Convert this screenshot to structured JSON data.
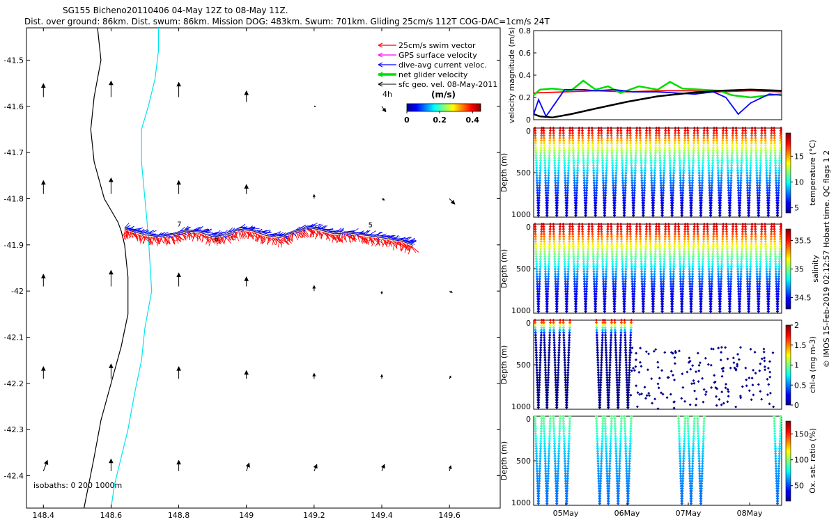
{
  "title_line1": "SG155 Bicheno20110406 04-May 12Z to 08-May 11Z.",
  "title_line2": "Dist. over ground: 86km. Dist. swum: 86km. Mission DOG: 483km. Swum: 701km. Gliding 25cm/s 112T COG-DAC=1cm/s 24T",
  "copyright": "© IMOS 15-Feb-2019 02:12:57 Hobart time. QC flags 1  2",
  "colors": {
    "swim": "#ff0000",
    "gps": "#ff00ff",
    "dac": "#0000ff",
    "net": "#00dd00",
    "sfc": "#000000",
    "coast": "#000000",
    "isobath_200": "#00e5ee"
  },
  "chart_data": [
    {
      "type": "scatter",
      "panel": "map",
      "xlim": [
        148.35,
        149.75
      ],
      "ylim": [
        -42.47,
        -41.43
      ],
      "x_ticks": [
        "148.4",
        "148.6",
        "148.8",
        "149",
        "149.2",
        "149.4",
        "149.6"
      ],
      "y_ticks": [
        "-41.5",
        "-41.6",
        "-41.7",
        "-41.8",
        "-41.9",
        "-42",
        "-42.1",
        "-42.2",
        "-42.3",
        "-42.4"
      ],
      "legend": {
        "placement": "top-right",
        "entries": [
          {
            "label": "25cm/s swim vector",
            "color": "#ff0000"
          },
          {
            "label": "GPS surface velocity",
            "color": "#ff00ff"
          },
          {
            "label": "dive-avg current veloc.",
            "color": "#0000ff"
          },
          {
            "label": "net glider velocity",
            "color": "#00dd00"
          },
          {
            "label": "sfc geo. vel. 08-May-2011",
            "color": "#000000"
          }
        ]
      },
      "colorbar": {
        "unit": "(m/s)",
        "duration": "4h",
        "ticks": [
          "0",
          "0.2",
          "0.4"
        ],
        "range": [
          0,
          0.45
        ]
      },
      "isobath_label": "isobaths: 0   200  1000m",
      "track": {
        "lon": [
          148.64,
          148.66,
          148.7,
          148.74,
          148.78,
          148.82,
          148.86,
          148.9,
          148.94,
          148.98,
          149.02,
          149.06,
          149.1,
          149.14,
          149.18,
          149.22,
          149.26,
          149.3,
          149.34,
          149.38,
          149.42,
          149.46,
          149.49
        ],
        "lat": [
          -41.865,
          -41.87,
          -41.878,
          -41.882,
          -41.878,
          -41.87,
          -41.872,
          -41.882,
          -41.878,
          -41.866,
          -41.87,
          -41.88,
          -41.884,
          -41.872,
          -41.862,
          -41.868,
          -41.876,
          -41.874,
          -41.878,
          -41.882,
          -41.887,
          -41.892,
          -41.9
        ]
      },
      "track_labels": [
        {
          "text": "7",
          "lon": 148.795,
          "lat": -41.86
        },
        {
          "text": "6",
          "lon": 148.905,
          "lat": -41.892
        },
        {
          "text": "5",
          "lon": 149.36,
          "lat": -41.862
        }
      ],
      "coastline": {
        "lon": [
          148.56,
          148.57,
          148.55,
          148.54,
          148.55,
          148.58,
          148.62,
          148.63,
          148.64,
          148.65,
          148.65,
          148.63,
          148.6,
          148.57,
          148.55,
          148.52
        ],
        "lat": [
          -41.43,
          -41.5,
          -41.58,
          -41.65,
          -41.72,
          -41.8,
          -41.85,
          -41.87,
          -41.9,
          -41.97,
          -42.05,
          -42.12,
          -42.2,
          -42.28,
          -42.36,
          -42.47
        ]
      },
      "isobath_200": {
        "lon": [
          148.74,
          148.74,
          148.73,
          148.71,
          148.69,
          148.69,
          148.7,
          148.71,
          148.72,
          148.7,
          148.69,
          148.67,
          148.65,
          148.63,
          148.61,
          148.6
        ],
        "lat": [
          -41.43,
          -41.48,
          -41.54,
          -41.6,
          -41.65,
          -41.72,
          -41.8,
          -41.88,
          -42.0,
          -42.08,
          -42.15,
          -42.22,
          -42.3,
          -42.36,
          -42.42,
          -42.47
        ]
      },
      "sfc_vectors": [
        {
          "lon": 148.4,
          "lat": -41.58,
          "u": 0.0,
          "v": 0.1
        },
        {
          "lon": 148.6,
          "lat": -41.58,
          "u": 0.0,
          "v": 0.12
        },
        {
          "lon": 148.8,
          "lat": -41.58,
          "u": 0.0,
          "v": 0.11
        },
        {
          "lon": 149.0,
          "lat": -41.59,
          "u": 0.0,
          "v": 0.08
        },
        {
          "lon": 149.2,
          "lat": -41.6,
          "u": 0.01,
          "v": 0.0
        },
        {
          "lon": 149.4,
          "lat": -41.6,
          "u": 0.03,
          "v": -0.04
        },
        {
          "lon": 148.4,
          "lat": -41.79,
          "u": 0.0,
          "v": 0.1
        },
        {
          "lon": 148.6,
          "lat": -41.79,
          "u": 0.0,
          "v": 0.12
        },
        {
          "lon": 148.8,
          "lat": -41.79,
          "u": 0.0,
          "v": 0.1
        },
        {
          "lon": 149.0,
          "lat": -41.79,
          "u": 0.0,
          "v": 0.07
        },
        {
          "lon": 149.2,
          "lat": -41.8,
          "u": 0.0,
          "v": 0.03
        },
        {
          "lon": 149.4,
          "lat": -41.8,
          "u": 0.02,
          "v": -0.01
        },
        {
          "lon": 149.6,
          "lat": -41.8,
          "u": 0.04,
          "v": -0.04
        },
        {
          "lon": 148.4,
          "lat": -41.99,
          "u": 0.0,
          "v": 0.09
        },
        {
          "lon": 148.6,
          "lat": -41.99,
          "u": 0.0,
          "v": 0.12
        },
        {
          "lon": 148.8,
          "lat": -41.99,
          "u": 0.0,
          "v": 0.1
        },
        {
          "lon": 149.0,
          "lat": -41.99,
          "u": 0.0,
          "v": 0.07
        },
        {
          "lon": 149.2,
          "lat": -42.0,
          "u": 0.0,
          "v": 0.04
        },
        {
          "lon": 149.4,
          "lat": -42.0,
          "u": 0.0,
          "v": -0.02
        },
        {
          "lon": 149.6,
          "lat": -42.0,
          "u": 0.02,
          "v": -0.01
        },
        {
          "lon": 148.4,
          "lat": -42.19,
          "u": 0.0,
          "v": 0.09
        },
        {
          "lon": 148.6,
          "lat": -42.19,
          "u": 0.0,
          "v": 0.11
        },
        {
          "lon": 148.8,
          "lat": -42.19,
          "u": 0.0,
          "v": 0.09
        },
        {
          "lon": 149.0,
          "lat": -42.19,
          "u": 0.0,
          "v": 0.06
        },
        {
          "lon": 149.2,
          "lat": -42.19,
          "u": 0.0,
          "v": 0.04
        },
        {
          "lon": 149.4,
          "lat": -42.19,
          "u": 0.0,
          "v": 0.03
        },
        {
          "lon": 149.6,
          "lat": -42.19,
          "u": 0.01,
          "v": 0.02
        },
        {
          "lon": 148.4,
          "lat": -42.39,
          "u": 0.03,
          "v": 0.08
        },
        {
          "lon": 148.6,
          "lat": -42.39,
          "u": 0.0,
          "v": 0.09
        },
        {
          "lon": 148.8,
          "lat": -42.39,
          "u": 0.0,
          "v": 0.08
        },
        {
          "lon": 149.0,
          "lat": -42.39,
          "u": 0.02,
          "v": 0.06
        },
        {
          "lon": 149.2,
          "lat": -42.39,
          "u": 0.02,
          "v": 0.05
        },
        {
          "lon": 149.4,
          "lat": -42.39,
          "u": 0.02,
          "v": 0.05
        },
        {
          "lon": 149.6,
          "lat": -42.39,
          "u": 0.01,
          "v": 0.04
        }
      ]
    },
    {
      "type": "line",
      "panel": "velocity",
      "ylabel": "velocity magnitude (m/s)",
      "ylim": [
        0,
        0.8
      ],
      "y_ticks": [
        "0",
        "0.2",
        "0.4",
        "0.6",
        "0.8"
      ],
      "x_days": [
        0,
        4
      ],
      "series": [
        {
          "color": "#ff0000",
          "x": [
            0,
            0.5,
            1,
            1.5,
            2,
            2.5,
            3,
            3.5,
            4
          ],
          "values": [
            0.24,
            0.25,
            0.26,
            0.25,
            0.26,
            0.26,
            0.25,
            0.26,
            0.25
          ]
        },
        {
          "color": "#00dd00",
          "x": [
            0,
            0.1,
            0.3,
            0.6,
            0.8,
            1.0,
            1.2,
            1.4,
            1.7,
            2.0,
            2.2,
            2.4,
            2.7,
            3.0,
            3.2,
            3.5,
            3.8,
            4
          ],
          "values": [
            0.22,
            0.27,
            0.28,
            0.26,
            0.35,
            0.27,
            0.3,
            0.24,
            0.3,
            0.27,
            0.34,
            0.28,
            0.27,
            0.26,
            0.22,
            0.2,
            0.22,
            0.23
          ]
        },
        {
          "color": "#0000ff",
          "x": [
            0,
            0.08,
            0.2,
            0.5,
            0.8,
            1.0,
            1.3,
            1.6,
            2.0,
            2.3,
            2.6,
            2.9,
            3.1,
            3.3,
            3.5,
            3.8,
            4
          ],
          "values": [
            0.05,
            0.18,
            0.03,
            0.27,
            0.27,
            0.26,
            0.27,
            0.25,
            0.25,
            0.24,
            0.23,
            0.25,
            0.2,
            0.05,
            0.15,
            0.23,
            0.22
          ]
        },
        {
          "color": "#000000",
          "x": [
            0,
            0.1,
            0.3,
            0.6,
            1.0,
            1.5,
            2.0,
            2.5,
            3.0,
            3.5,
            4
          ],
          "values": [
            0.05,
            0.03,
            0.02,
            0.05,
            0.1,
            0.16,
            0.21,
            0.24,
            0.26,
            0.27,
            0.26
          ]
        }
      ]
    },
    {
      "type": "scatter",
      "panel": "temperature",
      "ylabel": "Depth (m)",
      "ylim": [
        1000,
        0
      ],
      "y_ticks": [
        "0",
        "500",
        "1000"
      ],
      "colorbar": {
        "label": "temperature (°C)",
        "range": [
          4,
          19.5
        ],
        "ticks": [
          "5",
          "10",
          "15"
        ],
        "tick_values": [
          5,
          10,
          15
        ]
      },
      "profile": {
        "depth": [
          0,
          100,
          200,
          300,
          400,
          500,
          600,
          700,
          800,
          900,
          1000
        ],
        "value": [
          18.5,
          16,
          13.5,
          11.5,
          10,
          8.8,
          7.8,
          6.8,
          6,
          5.3,
          4.8
        ]
      },
      "dives": [
        0.0,
        0.14,
        0.3,
        0.46,
        0.61,
        0.77,
        0.93,
        1.08,
        1.24,
        1.4,
        1.55,
        1.71,
        1.87,
        2.02,
        2.18,
        2.34,
        2.49,
        2.65,
        2.81,
        2.96,
        3.12,
        3.28,
        3.43,
        3.59,
        3.75,
        3.9
      ],
      "max_depth": 1000
    },
    {
      "type": "scatter",
      "panel": "salinity",
      "ylabel": "Depth (m)",
      "ylim": [
        1000,
        0
      ],
      "y_ticks": [
        "0",
        "500",
        "1000"
      ],
      "colorbar": {
        "label": "salinity",
        "range": [
          34.3,
          35.7
        ],
        "ticks": [
          "34.5",
          "35",
          "35.5"
        ],
        "tick_values": [
          34.5,
          35,
          35.5
        ]
      },
      "profile": {
        "depth": [
          0,
          100,
          200,
          300,
          400,
          500,
          600,
          700,
          800,
          900,
          1000
        ],
        "value": [
          35.6,
          35.45,
          35.25,
          35.05,
          34.9,
          34.75,
          34.62,
          34.52,
          34.46,
          34.42,
          34.4
        ]
      },
      "dives": [
        0.0,
        0.14,
        0.3,
        0.46,
        0.61,
        0.77,
        0.93,
        1.08,
        1.24,
        1.4,
        1.55,
        1.71,
        1.87,
        2.02,
        2.18,
        2.34,
        2.49,
        2.65,
        2.81,
        2.96,
        3.12,
        3.28,
        3.43,
        3.59,
        3.75,
        3.9
      ],
      "max_depth": 1000
    },
    {
      "type": "scatter",
      "panel": "chl",
      "ylabel": "Depth (m)",
      "ylim": [
        1000,
        0
      ],
      "y_ticks": [
        "0",
        "500",
        "1000"
      ],
      "colorbar": {
        "label": "chl-a (mg m-3)",
        "range": [
          0,
          2
        ],
        "ticks": [
          "0",
          "0.5",
          "1",
          "1.5",
          "2"
        ],
        "tick_values": [
          0,
          0.5,
          1,
          1.5,
          2
        ]
      },
      "profile": {
        "depth": [
          0,
          30,
          60,
          100,
          150,
          200,
          400,
          1000
        ],
        "value": [
          1.8,
          1.6,
          1.2,
          0.7,
          0.3,
          0.1,
          0.02,
          0.0
        ]
      },
      "dives": [
        0.0,
        0.14,
        0.3,
        0.46,
        1.0,
        1.14,
        1.3,
        1.46
      ],
      "max_depth": 1000,
      "sparse_region": {
        "x": [
          1.55,
          3.9
        ],
        "depth": [
          300,
          1000
        ]
      }
    },
    {
      "type": "scatter",
      "panel": "oxygen",
      "ylabel": "Depth (m)",
      "ylim": [
        1000,
        0
      ],
      "y_ticks": [
        "0",
        "500",
        "1000"
      ],
      "x_days": [
        0,
        4
      ],
      "x_ticks": [
        "05May",
        "06May",
        "07May",
        "08May"
      ],
      "x_tick_days": [
        0.5,
        1.5,
        2.5,
        3.5
      ],
      "colorbar": {
        "label": "Ox. sat. ratio (%)",
        "range": [
          20,
          175
        ],
        "ticks": [
          "50",
          "100",
          "150"
        ],
        "tick_values": [
          50,
          100,
          150
        ]
      },
      "profile": {
        "depth": [
          0,
          100,
          200,
          300,
          500,
          700,
          1000
        ],
        "value": [
          95,
          90,
          85,
          75,
          65,
          60,
          55
        ]
      },
      "dives": [
        0.0,
        0.14,
        0.3,
        0.46,
        1.0,
        1.14,
        1.3,
        1.46,
        2.34,
        2.49,
        2.65,
        3.9
      ],
      "max_depth": 1000
    }
  ]
}
